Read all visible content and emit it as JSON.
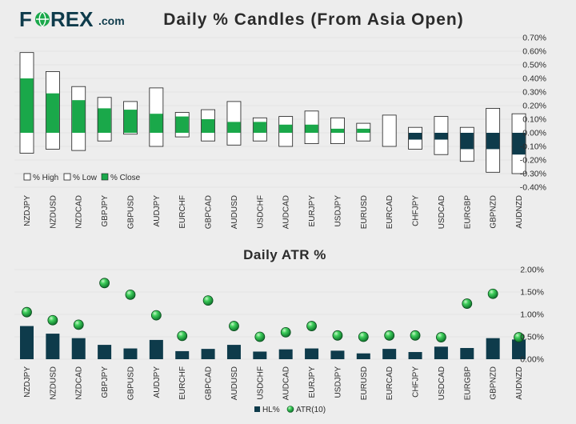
{
  "logo": {
    "main": "F",
    "rest": "REX",
    "suffix": ".com"
  },
  "chart_data": [
    {
      "type": "bar",
      "title": "Daily % Candles (From Asia Open)",
      "categories": [
        "NZDJPY",
        "NZDUSD",
        "NZDCAD",
        "GBPJPY",
        "GBPUSD",
        "AUDJPY",
        "EURCHF",
        "GBPCAD",
        "AUDUSD",
        "USDCHF",
        "AUDCAD",
        "EURJPY",
        "USDJPY",
        "EURUSD",
        "EURCAD",
        "CHFJPY",
        "USDCAD",
        "EURGBP",
        "GBPNZD",
        "AUDNZD"
      ],
      "series": [
        {
          "name": "% High",
          "values": [
            0.59,
            0.45,
            0.34,
            0.26,
            0.23,
            0.33,
            0.15,
            0.17,
            0.23,
            0.11,
            0.12,
            0.16,
            0.11,
            0.07,
            0.13,
            0.04,
            0.12,
            0.04,
            0.18,
            0.14
          ]
        },
        {
          "name": "% Low",
          "values": [
            -0.15,
            -0.12,
            -0.13,
            -0.06,
            -0.01,
            -0.1,
            -0.03,
            -0.06,
            -0.09,
            -0.06,
            -0.1,
            -0.08,
            -0.08,
            -0.06,
            -0.1,
            -0.12,
            -0.16,
            -0.21,
            -0.29,
            -0.3
          ]
        },
        {
          "name": "% Close",
          "values": [
            0.4,
            0.29,
            0.24,
            0.18,
            0.17,
            0.14,
            0.12,
            0.1,
            0.08,
            0.08,
            0.06,
            0.06,
            0.03,
            0.03,
            0.0,
            -0.05,
            -0.05,
            -0.12,
            -0.12,
            -0.16
          ]
        }
      ],
      "ylim": [
        -0.4,
        0.7
      ],
      "yticks": [
        "0.70%",
        "0.60%",
        "0.50%",
        "0.40%",
        "0.30%",
        "0.20%",
        "0.10%",
        "0.00%",
        "-0.10%",
        "-0.20%",
        "-0.30%",
        "-0.40%"
      ],
      "legend_position": "bottom-left",
      "colors": {
        "up": "#1aa84a",
        "down": "#0e3b4b",
        "box_stroke": "#1b1b1b",
        "box_fill": "#ffffff"
      }
    },
    {
      "type": "bar",
      "title": "Daily ATR %",
      "categories": [
        "NZDJPY",
        "NZDUSD",
        "NZDCAD",
        "GBPJPY",
        "GBPUSD",
        "AUDJPY",
        "EURCHF",
        "GBPCAD",
        "AUDUSD",
        "USDCHF",
        "AUDCAD",
        "EURJPY",
        "USDJPY",
        "EURUSD",
        "EURCAD",
        "CHFJPY",
        "USDCAD",
        "EURGBP",
        "GBPNZD",
        "AUDNZD"
      ],
      "series": [
        {
          "name": "HL%",
          "values": [
            0.74,
            0.57,
            0.47,
            0.32,
            0.24,
            0.43,
            0.18,
            0.23,
            0.32,
            0.17,
            0.22,
            0.24,
            0.19,
            0.13,
            0.23,
            0.16,
            0.28,
            0.25,
            0.47,
            0.44
          ]
        },
        {
          "name": "ATR(10)",
          "values": [
            1.05,
            0.87,
            0.77,
            1.7,
            1.44,
            0.98,
            0.52,
            1.31,
            0.74,
            0.5,
            0.6,
            0.74,
            0.53,
            0.5,
            0.53,
            0.53,
            0.49,
            1.24,
            1.46,
            0.49
          ]
        }
      ],
      "ylim": [
        0,
        2.0
      ],
      "yticks": [
        "2.00%",
        "1.50%",
        "1.00%",
        "0.50%",
        "0.00%"
      ],
      "legend_position": "bottom-center",
      "colors": {
        "bar": "#0e3b4b",
        "dot": "#1aa84a"
      }
    }
  ]
}
